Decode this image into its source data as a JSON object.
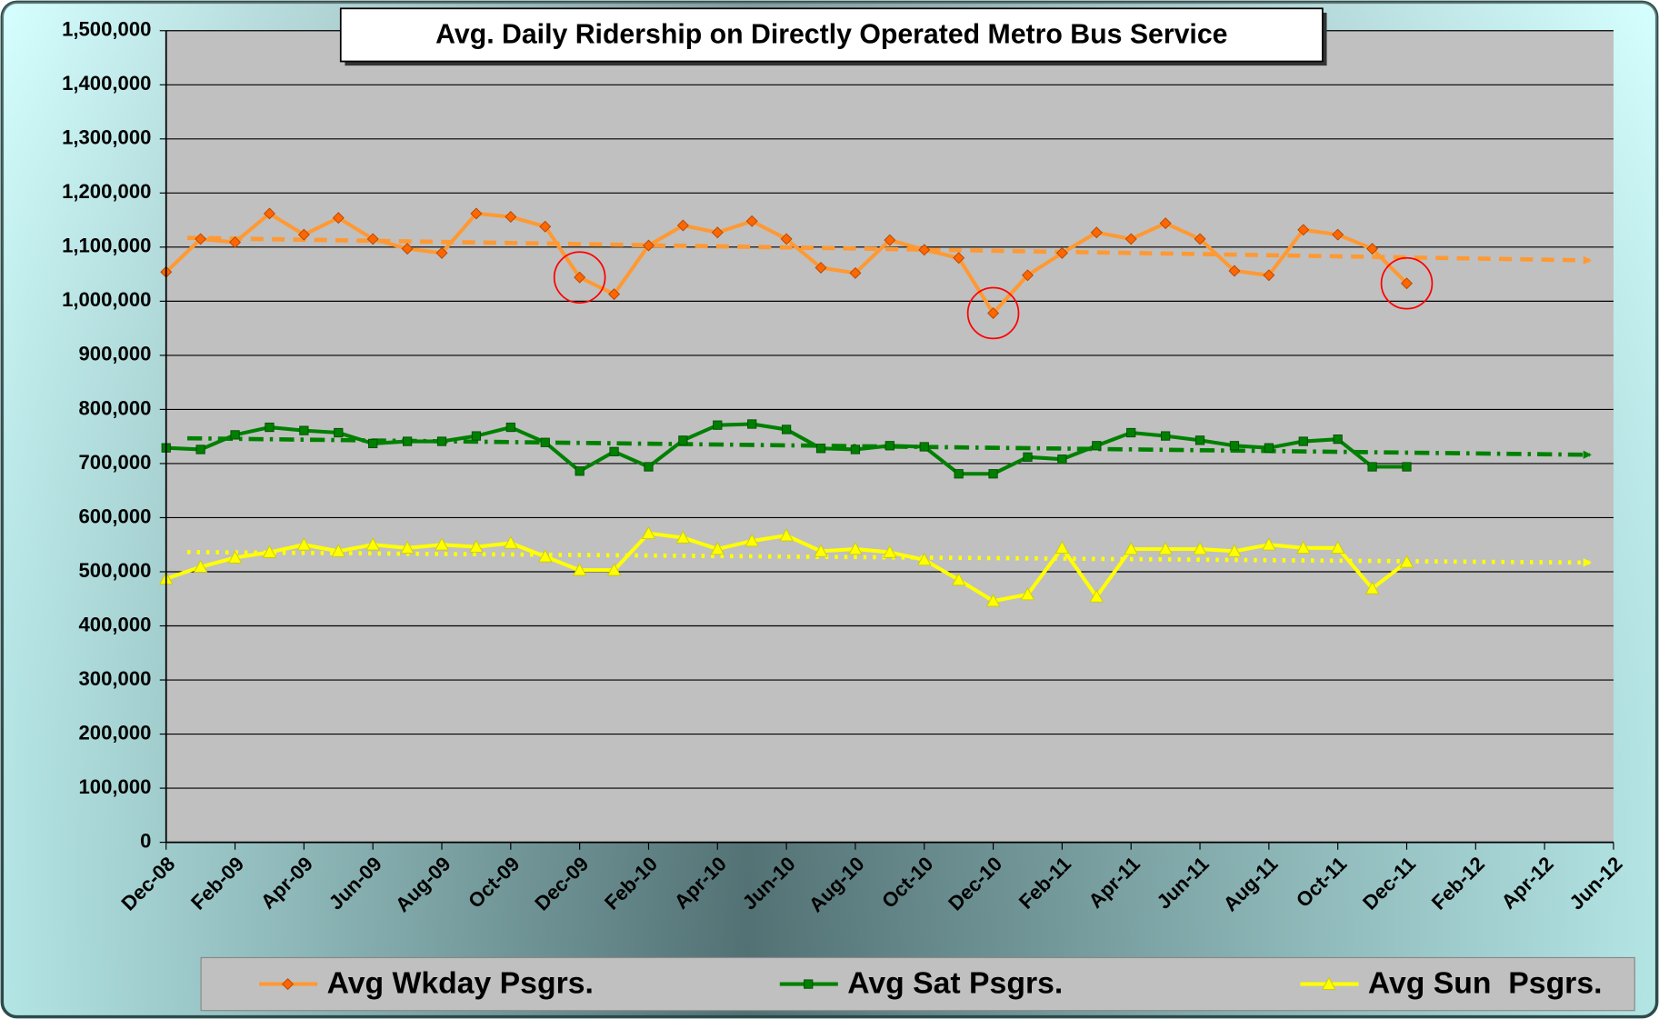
{
  "chart_data": {
    "type": "line",
    "title": "Avg. Daily Ridership on Directly Operated Metro Bus Service",
    "categories": [
      "Dec-08",
      null,
      "Feb-09",
      null,
      "Apr-09",
      null,
      "Jun-09",
      null,
      "Aug-09",
      null,
      "Oct-09",
      null,
      "Dec-09",
      null,
      "Feb-10",
      null,
      "Apr-10",
      null,
      "Jun-10",
      null,
      "Aug-10",
      null,
      "Oct-10",
      null,
      "Dec-10",
      null,
      "Feb-11",
      null,
      "Apr-11",
      null,
      "Jun-11",
      null,
      "Aug-11",
      null,
      "Oct-11",
      null,
      "Dec-11",
      null,
      "Feb-12",
      null,
      "Apr-12",
      null,
      "Jun-12"
    ],
    "series": [
      {
        "name": "Avg Wkday Psgrs.",
        "color": "#ff9933",
        "marker_color": "#ff6600",
        "marker": "diamond",
        "values": [
          1054000,
          1115000,
          1109000,
          1162000,
          1123000,
          1154000,
          1115000,
          1097000,
          1089000,
          1162000,
          1156000,
          1138000,
          1044000,
          1013000,
          1103000,
          1140000,
          1127000,
          1148000,
          1115000,
          1062000,
          1052000,
          1113000,
          1095000,
          1080000,
          978000,
          1048000,
          1089000,
          1127000,
          1115000,
          1144000,
          1115000,
          1056000,
          1048000,
          1132000,
          1123000,
          1097000,
          1033000,
          null,
          null,
          null,
          null,
          null,
          null
        ]
      },
      {
        "name": "Avg Sat Psgrs.",
        "color": "#008000",
        "marker_color": "#008000",
        "marker": "square",
        "values": [
          729000,
          726000,
          753000,
          767000,
          761000,
          757000,
          737000,
          741000,
          741000,
          751000,
          767000,
          739000,
          686000,
          722000,
          694000,
          743000,
          771000,
          773000,
          763000,
          728000,
          726000,
          733000,
          731000,
          681000,
          681000,
          712000,
          708000,
          733000,
          757000,
          751000,
          743000,
          733000,
          729000,
          741000,
          745000,
          694000,
          694000,
          null,
          null,
          null,
          null,
          null,
          null
        ]
      },
      {
        "name": "Avg Sun  Psgrs.",
        "color": "#ffff00",
        "marker_color": "#ffff00",
        "marker": "triangle",
        "values": [
          487000,
          509000,
          526000,
          536000,
          550000,
          538000,
          550000,
          544000,
          550000,
          546000,
          553000,
          528000,
          503000,
          503000,
          571000,
          563000,
          542000,
          557000,
          567000,
          538000,
          542000,
          536000,
          522000,
          485000,
          446000,
          458000,
          544000,
          454000,
          542000,
          542000,
          542000,
          538000,
          550000,
          544000,
          544000,
          469000,
          518000,
          null,
          null,
          null,
          null,
          null,
          null
        ]
      }
    ],
    "ylim": [
      0,
      1500000
    ],
    "yticks": [
      0,
      {
        "value": 100000,
        "label": "100,000"
      },
      {
        "value": 200000,
        "label": "200,000"
      },
      {
        "value": 300000,
        "label": "300,000"
      },
      {
        "value": 400000,
        "label": "400,000"
      },
      {
        "value": 500000,
        "label": "500,000"
      },
      {
        "value": 600000,
        "label": "600,000"
      },
      {
        "value": 700000,
        "label": "700,000"
      },
      {
        "value": 800000,
        "label": "800,000"
      },
      {
        "value": 900000,
        "label": "900,000"
      },
      {
        "value": 1000000,
        "label": "1,000,000"
      },
      {
        "value": 1100000,
        "label": "1,100,000"
      },
      {
        "value": 1200000,
        "label": "1,200,000"
      },
      {
        "value": 1300000,
        "label": "1,300,000"
      },
      {
        "value": 1400000,
        "label": "1,400,000"
      },
      {
        "value": 1500000,
        "label": "1,500,000"
      }
    ],
    "grid": true,
    "trendline": true,
    "legend": "bottom",
    "highlight_points": [
      12,
      24,
      36
    ]
  }
}
